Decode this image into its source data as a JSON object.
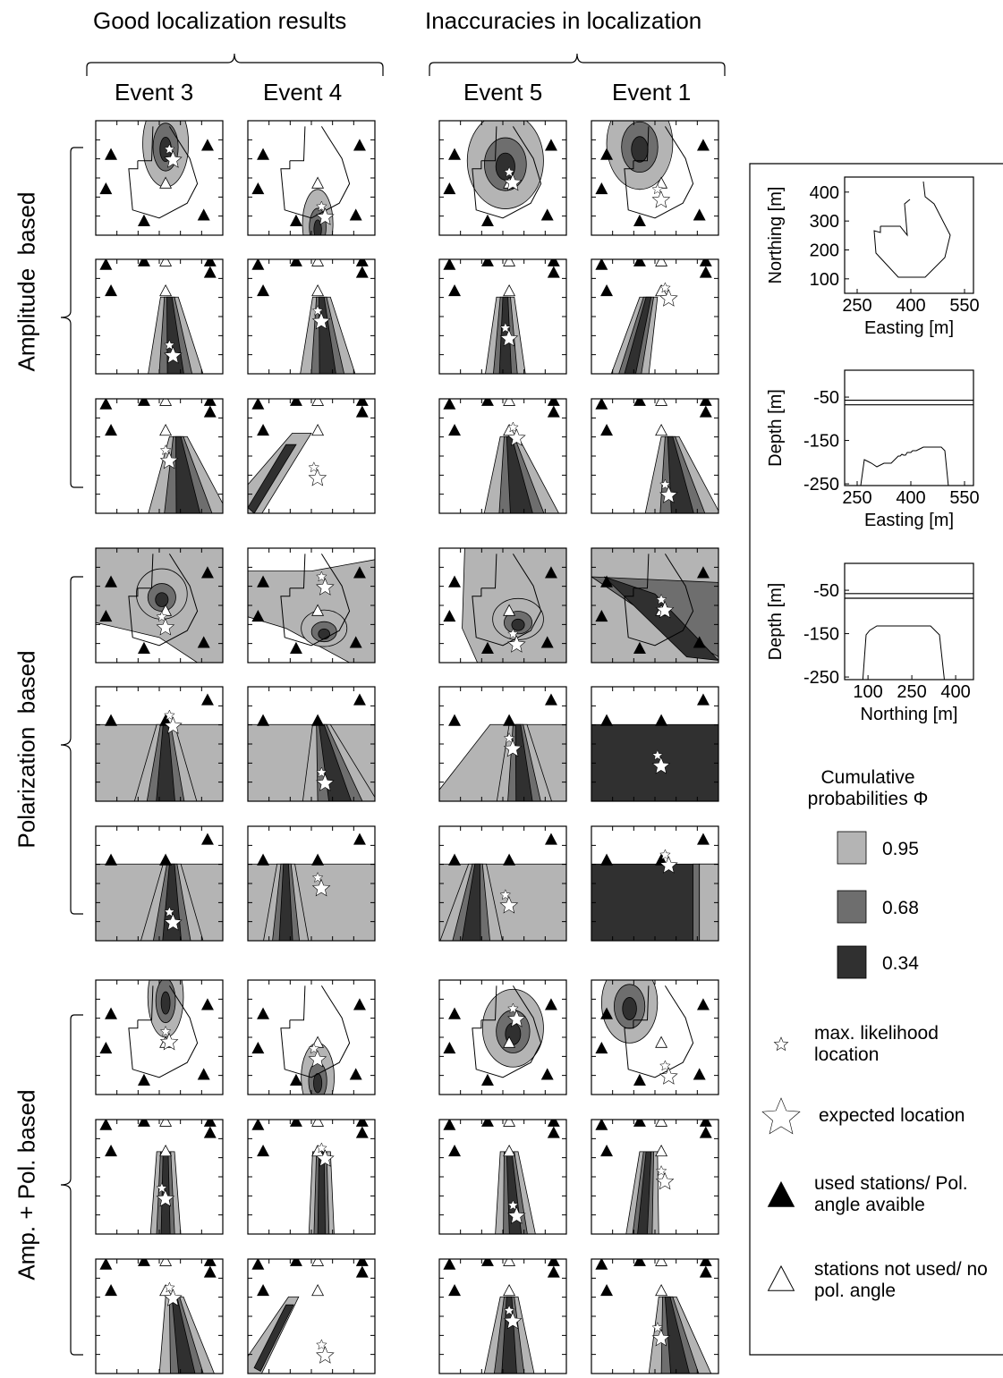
{
  "header": {
    "groups": [
      "Good localization results",
      "Inaccuracies in localization"
    ],
    "events": [
      "Event 3",
      "Event 4",
      "Event 5",
      "Event 1"
    ]
  },
  "rows": [
    "Amplitude  based",
    "Polarization  based",
    "Amp. + Pol. based"
  ],
  "reference": [
    {
      "ylabel": "Northing [m]",
      "xlabel": "Easting [m]",
      "xlim": [
        215,
        575
      ],
      "xticks": [
        250,
        400,
        550
      ],
      "ylim": [
        50,
        452
      ],
      "yticks": [
        100,
        200,
        300,
        400
      ]
    },
    {
      "ylabel": "Depth [m]",
      "xlabel": "Easting [m]",
      "xlim": [
        215,
        575
      ],
      "xticks": [
        250,
        400,
        550
      ],
      "ylim": [
        -254,
        12
      ],
      "yticks": [
        -50,
        -150,
        -250
      ]
    },
    {
      "ylabel": "Depth [m]",
      "xlabel": "Northing [m]",
      "xlim": [
        20,
        461
      ],
      "xticks": [
        100,
        250,
        400
      ],
      "ylim": [
        -256,
        12
      ],
      "yticks": [
        -50,
        -150,
        -250
      ]
    }
  ],
  "legend": {
    "title": "Cumulative probabilities Φ",
    "levels": [
      {
        "label": 0.95,
        "color": "#b4b4b4"
      },
      {
        "label": 0.68,
        "color": "#6e6e6e"
      },
      {
        "label": 0.34,
        "color": "#303030"
      }
    ],
    "symbols": [
      "max. likelihood location",
      "expected location",
      "used stations/ Pol. angle avaible",
      "stations not used/ no pol. angle"
    ]
  }
}
